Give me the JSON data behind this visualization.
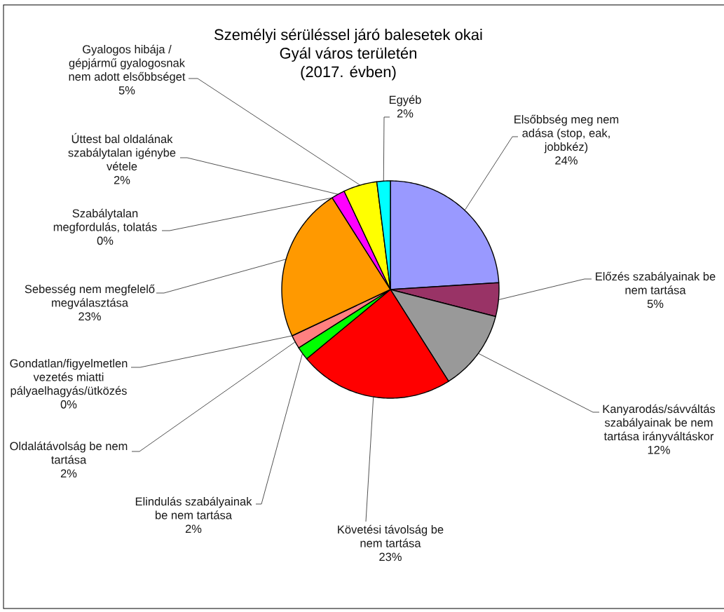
{
  "chart_data": {
    "type": "pie",
    "title": "Személyi sérüléssel járó balesetek okai Gyál város területén",
    "subtitle": "(2017. évben)",
    "categories": [
      "Elsőbbség meg nem adása (stop, eak, jobbkéz)",
      "Előzés szabályainak be nem tartása",
      "Kanyarodás/sávváltás szabályainak be nem tartása irányváltáskor",
      "Követési távolság be nem tartása",
      "Elindulás szabályainak be nem tartása",
      "Oldalátávolság be nem tartása",
      "Gondatlan/figyelmetlen vezetés miatti pályaelhagyás/ütközés",
      "Sebesség nem megfelelő megválasztása",
      "Szabálytalan megfordulás, tolatás",
      "Úttest bal oldalának szabálytalan igénybe vétele",
      "Gyalogos hibája / gépjármű gyalogosnak nem adott elsőbbséget",
      "Egyéb"
    ],
    "values": [
      24,
      5,
      12,
      23,
      2,
      2,
      0,
      23,
      0,
      2,
      5,
      2
    ],
    "colors": [
      "#9999ff",
      "#993366",
      "#999999",
      "#ff0000",
      "#00ff00",
      "#ff8080",
      null,
      "#ff9900",
      null,
      "#ff00ff",
      "#ffff00",
      "#00ffff"
    ],
    "value_labels": [
      "24%",
      "5%",
      "12%",
      "23%",
      "2%",
      "2%",
      "0%",
      "23%",
      "0%",
      "2%",
      "5%",
      "2%"
    ]
  }
}
